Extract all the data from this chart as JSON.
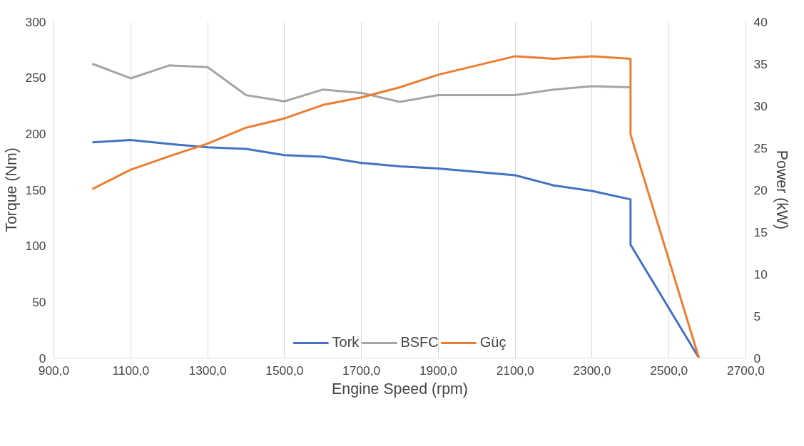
{
  "chart_data": {
    "type": "line",
    "xlabel": "Engine Speed (rpm)",
    "ylabel": "Torque (Nm)",
    "y2label": "Power (kW)",
    "xlim": [
      900,
      2700
    ],
    "xticks": [
      {
        "value": 900,
        "label": "900,0"
      },
      {
        "value": 1100,
        "label": "1100,0"
      },
      {
        "value": 1300,
        "label": "1300,0"
      },
      {
        "value": 1500,
        "label": "1500,0"
      },
      {
        "value": 1700,
        "label": "1700,0"
      },
      {
        "value": 1900,
        "label": "1900,0"
      },
      {
        "value": 2100,
        "label": "2100,0"
      },
      {
        "value": 2300,
        "label": "2300,0"
      },
      {
        "value": 2500,
        "label": "2500,0"
      },
      {
        "value": 2700,
        "label": "2700,0"
      }
    ],
    "ylim": [
      0,
      300
    ],
    "yticks": [
      0,
      50,
      100,
      150,
      200,
      250,
      300
    ],
    "y2lim": [
      0,
      40
    ],
    "y2ticks": [
      0,
      5,
      10,
      15,
      20,
      25,
      30,
      35,
      40
    ],
    "grid": "x",
    "legend": "bottom",
    "line_style": "solid",
    "marker": "none",
    "series": [
      {
        "name": "Tork",
        "color": "#4472c4",
        "x": [
          1000,
          1100,
          1200,
          1300,
          1400,
          1500,
          1600,
          1700,
          1800,
          1900,
          2000,
          2100,
          2200,
          2300,
          2400,
          2400,
          2578
        ],
        "values": [
          192.5,
          194.5,
          191,
          188,
          186.5,
          181,
          179.5,
          174,
          171,
          169,
          166,
          163,
          154,
          149,
          141.5,
          101,
          0
        ]
      },
      {
        "name": "BSFC",
        "color": "#a5a5a5",
        "x": [
          1000,
          1100,
          1200,
          1300,
          1400,
          1500,
          1600,
          1700,
          1800,
          1900,
          2000,
          2100,
          2200,
          2300,
          2400
        ],
        "values": [
          262.5,
          249.5,
          261,
          259.5,
          234.5,
          229,
          239.5,
          236.5,
          228.5,
          234.5,
          234.5,
          234.5,
          239.5,
          242.5,
          241.5
        ]
      },
      {
        "name": "Güç",
        "color": "#ed7d31",
        "axis": "y2",
        "x": [
          1000,
          1100,
          1200,
          1300,
          1400,
          1500,
          1600,
          1700,
          1800,
          1900,
          2000,
          2100,
          2200,
          2300,
          2400,
          2400,
          2578
        ],
        "values": [
          20.1,
          22.4,
          24.0,
          25.5,
          27.4,
          28.5,
          30.1,
          31.0,
          32.2,
          33.7,
          34.8,
          35.9,
          35.6,
          35.9,
          35.6,
          26.6,
          0
        ]
      }
    ]
  }
}
